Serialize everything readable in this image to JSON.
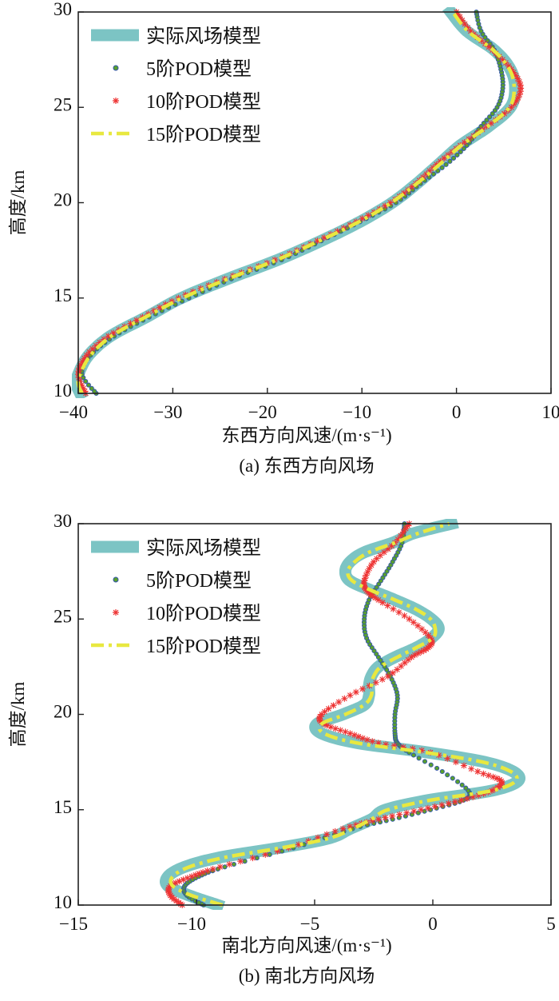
{
  "chart_data": [
    {
      "type": "line",
      "caption": "(a) 东西方向风场",
      "xlabel": "东西方向风速/(m·s⁻¹)",
      "ylabel": "高度/km",
      "xlim": [
        -40,
        10
      ],
      "ylim": [
        10,
        30
      ],
      "xticks": [
        -40,
        -30,
        -20,
        -10,
        0,
        10
      ],
      "yticks": [
        10,
        15,
        20,
        25,
        30
      ],
      "grid": false,
      "legend_position": "top-left",
      "series": [
        {
          "name": "实际风场模型",
          "style": "thick-line",
          "color": "#7cc4c4",
          "points": [
            [
              -39.8,
              10
            ],
            [
              -40.2,
              10.5
            ],
            [
              -40,
              11
            ],
            [
              -38.9,
              12
            ],
            [
              -36.6,
              13
            ],
            [
              -32.8,
              14
            ],
            [
              -29.1,
              15
            ],
            [
              -24.2,
              16
            ],
            [
              -18.9,
              17
            ],
            [
              -14.3,
              18
            ],
            [
              -10.2,
              19
            ],
            [
              -6.8,
              20
            ],
            [
              -4.2,
              21
            ],
            [
              -1.9,
              22
            ],
            [
              0.4,
              23
            ],
            [
              3.4,
              24
            ],
            [
              5.7,
              25
            ],
            [
              6.2,
              26
            ],
            [
              5.7,
              27
            ],
            [
              4.0,
              28
            ],
            [
              1.1,
              29
            ],
            [
              -0.6,
              30
            ]
          ]
        },
        {
          "name": "5阶POD模型",
          "style": "circle-markers",
          "color": "#5aa02c",
          "points": [
            [
              -38.1,
              10
            ],
            [
              -39.6,
              11
            ],
            [
              -38.7,
              12
            ],
            [
              -36.2,
              13
            ],
            [
              -32.5,
              14
            ],
            [
              -28.3,
              15
            ],
            [
              -23.8,
              16
            ],
            [
              -18.5,
              17
            ],
            [
              -14.3,
              18
            ],
            [
              -10.2,
              19
            ],
            [
              -6.4,
              20
            ],
            [
              -3.8,
              21
            ],
            [
              -1.1,
              22
            ],
            [
              1.1,
              23
            ],
            [
              2.6,
              24
            ],
            [
              4.3,
              25
            ],
            [
              4.9,
              26
            ],
            [
              4.7,
              27
            ],
            [
              4.0,
              28
            ],
            [
              2.6,
              29
            ],
            [
              2.1,
              30
            ]
          ]
        },
        {
          "name": "10阶POD模型",
          "style": "asterisk-markers",
          "color": "#ee3333",
          "points": [
            [
              -39.2,
              10
            ],
            [
              -40,
              11
            ],
            [
              -39.1,
              12
            ],
            [
              -36.8,
              13
            ],
            [
              -33.2,
              14
            ],
            [
              -29.4,
              15
            ],
            [
              -24.5,
              16
            ],
            [
              -19.2,
              17
            ],
            [
              -14.7,
              18
            ],
            [
              -10.6,
              19
            ],
            [
              -7.0,
              20
            ],
            [
              -4.3,
              21
            ],
            [
              -2.1,
              22
            ],
            [
              0.4,
              23
            ],
            [
              3.2,
              24
            ],
            [
              5.8,
              25
            ],
            [
              6.8,
              26
            ],
            [
              5.8,
              27
            ],
            [
              3.8,
              28
            ],
            [
              1.5,
              29
            ],
            [
              0.0,
              30
            ]
          ]
        },
        {
          "name": "15阶POD模型",
          "style": "dash-dot-line",
          "color": "#e8e840",
          "points": [
            [
              -39.6,
              10
            ],
            [
              -40.0,
              10.5
            ],
            [
              -39.8,
              11
            ],
            [
              -38.7,
              12
            ],
            [
              -36.5,
              13
            ],
            [
              -32.9,
              14
            ],
            [
              -29.0,
              15
            ],
            [
              -24.2,
              16
            ],
            [
              -19.0,
              17
            ],
            [
              -14.5,
              18
            ],
            [
              -10.3,
              19
            ],
            [
              -6.9,
              20
            ],
            [
              -4.2,
              21
            ],
            [
              -1.8,
              22
            ],
            [
              0.5,
              23
            ],
            [
              3.3,
              24
            ],
            [
              5.6,
              25
            ],
            [
              6.1,
              26
            ],
            [
              5.6,
              27
            ],
            [
              3.9,
              28
            ],
            [
              1.2,
              29
            ],
            [
              -0.4,
              30
            ]
          ]
        }
      ]
    },
    {
      "type": "line",
      "caption": "(b) 南北方向风场",
      "xlabel": "南北方向风速/(m·s⁻¹)",
      "ylabel": "高度/km",
      "xlim": [
        -15,
        5
      ],
      "ylim": [
        10,
        30
      ],
      "xticks": [
        -15,
        -10,
        -5,
        0,
        5
      ],
      "yticks": [
        10,
        15,
        20,
        25,
        30
      ],
      "grid": false,
      "legend_position": "top-left",
      "series": [
        {
          "name": "实际风场模型",
          "style": "thick-line",
          "color": "#7cc4c4",
          "points": [
            [
              -9.1,
              10
            ],
            [
              -10.3,
              10.5
            ],
            [
              -11.2,
              11
            ],
            [
              -11.2,
              11.5
            ],
            [
              -10.5,
              12
            ],
            [
              -9.0,
              12.5
            ],
            [
              -6.5,
              13
            ],
            [
              -4.4,
              13.5
            ],
            [
              -3.5,
              14
            ],
            [
              -2.6,
              14.5
            ],
            [
              -2.0,
              15
            ],
            [
              -0.2,
              15.5
            ],
            [
              2.5,
              16
            ],
            [
              3.6,
              16.5
            ],
            [
              3.4,
              17
            ],
            [
              2.2,
              17.5
            ],
            [
              -0.2,
              18
            ],
            [
              -3.2,
              18.5
            ],
            [
              -4.7,
              19
            ],
            [
              -4.9,
              19.5
            ],
            [
              -3.8,
              20
            ],
            [
              -2.9,
              20.5
            ],
            [
              -2.7,
              21
            ],
            [
              -2.7,
              21.5
            ],
            [
              -2.6,
              22
            ],
            [
              -2.3,
              22.5
            ],
            [
              -1.6,
              23
            ],
            [
              -0.7,
              23.5
            ],
            [
              -0.06,
              24
            ],
            [
              0.25,
              24.5
            ],
            [
              -0.06,
              25
            ],
            [
              -0.7,
              25.5
            ],
            [
              -1.6,
              26
            ],
            [
              -2.6,
              26.5
            ],
            [
              -3.5,
              27
            ],
            [
              -3.7,
              27.5
            ],
            [
              -3.5,
              28
            ],
            [
              -2.9,
              28.5
            ],
            [
              -1.7,
              29
            ],
            [
              -0.8,
              29.5
            ],
            [
              0.8,
              30
            ]
          ]
        },
        {
          "name": "5阶POD模型",
          "style": "circle-markers",
          "color": "#5aa02c",
          "points": [
            [
              -9.7,
              10
            ],
            [
              -10.4,
              10.5
            ],
            [
              -10.5,
              11
            ],
            [
              -9.9,
              11.5
            ],
            [
              -8.8,
              12
            ],
            [
              -5.9,
              13
            ],
            [
              -3.4,
              14
            ],
            [
              -1.7,
              14.5
            ],
            [
              -0.1,
              15
            ],
            [
              1.3,
              15.5
            ],
            [
              1.5,
              16
            ],
            [
              0.4,
              17
            ],
            [
              -1.0,
              18
            ],
            [
              -1.5,
              18.5
            ],
            [
              -1.6,
              19
            ],
            [
              -1.6,
              20
            ],
            [
              -1.5,
              21
            ],
            [
              -1.8,
              22
            ],
            [
              -2.3,
              23
            ],
            [
              -2.8,
              24
            ],
            [
              -2.9,
              25
            ],
            [
              -2.7,
              26
            ],
            [
              -2.2,
              27
            ],
            [
              -1.7,
              28
            ],
            [
              -1.3,
              29
            ],
            [
              -1.2,
              30
            ]
          ]
        },
        {
          "name": "10阶POD模型",
          "style": "asterisk-markers",
          "color": "#ee3333",
          "points": [
            [
              -10.6,
              10
            ],
            [
              -11.1,
              10.5
            ],
            [
              -11.1,
              11
            ],
            [
              -10.2,
              11.5
            ],
            [
              -9.0,
              12
            ],
            [
              -6.1,
              13
            ],
            [
              -3.8,
              14
            ],
            [
              -2.3,
              14.5
            ],
            [
              -0.5,
              15
            ],
            [
              1.2,
              15.5
            ],
            [
              2.5,
              16
            ],
            [
              2.9,
              16.5
            ],
            [
              1.9,
              17
            ],
            [
              -0.1,
              18
            ],
            [
              -2.3,
              18.5
            ],
            [
              -3.5,
              19
            ],
            [
              -4.6,
              19.5
            ],
            [
              -4.7,
              20
            ],
            [
              -3.5,
              21
            ],
            [
              -1.9,
              22
            ],
            [
              -0.9,
              23
            ],
            [
              -0.2,
              23.5
            ],
            [
              -0.1,
              24
            ],
            [
              -1.0,
              25
            ],
            [
              -2.3,
              26
            ],
            [
              -2.8,
              26.5
            ],
            [
              -2.9,
              27
            ],
            [
              -2.5,
              28
            ],
            [
              -1.6,
              29
            ],
            [
              -1.0,
              30
            ]
          ]
        },
        {
          "name": "15阶POD模型",
          "style": "dash-dot-line",
          "color": "#e8e840",
          "points": [
            [
              -8.9,
              10
            ],
            [
              -10.2,
              10.5
            ],
            [
              -11.0,
              11
            ],
            [
              -11.0,
              11.5
            ],
            [
              -10.3,
              12
            ],
            [
              -8.8,
              12.5
            ],
            [
              -6.4,
              13
            ],
            [
              -4.4,
              13.5
            ],
            [
              -3.4,
              14
            ],
            [
              -2.6,
              14.5
            ],
            [
              -1.9,
              15
            ],
            [
              -0.1,
              15.5
            ],
            [
              2.5,
              16
            ],
            [
              3.5,
              16.5
            ],
            [
              3.3,
              17
            ],
            [
              2.1,
              17.5
            ],
            [
              -0.3,
              18
            ],
            [
              -3.2,
              18.5
            ],
            [
              -4.6,
              19
            ],
            [
              -4.7,
              19.5
            ],
            [
              -3.7,
              20
            ],
            [
              -2.9,
              20.5
            ],
            [
              -2.6,
              21
            ],
            [
              -2.6,
              21.5
            ],
            [
              -2.5,
              22
            ],
            [
              -2.2,
              22.5
            ],
            [
              -1.5,
              23
            ],
            [
              -0.7,
              23.5
            ],
            [
              0.0,
              24
            ],
            [
              0.1,
              24.5
            ],
            [
              -0.1,
              25
            ],
            [
              -0.7,
              25.5
            ],
            [
              -1.6,
              26
            ],
            [
              -2.6,
              26.5
            ],
            [
              -3.4,
              27
            ],
            [
              -3.6,
              27.5
            ],
            [
              -3.3,
              28
            ],
            [
              -2.7,
              28.5
            ],
            [
              -1.6,
              29
            ],
            [
              -0.6,
              29.5
            ],
            [
              0.7,
              30
            ]
          ]
        }
      ]
    }
  ]
}
